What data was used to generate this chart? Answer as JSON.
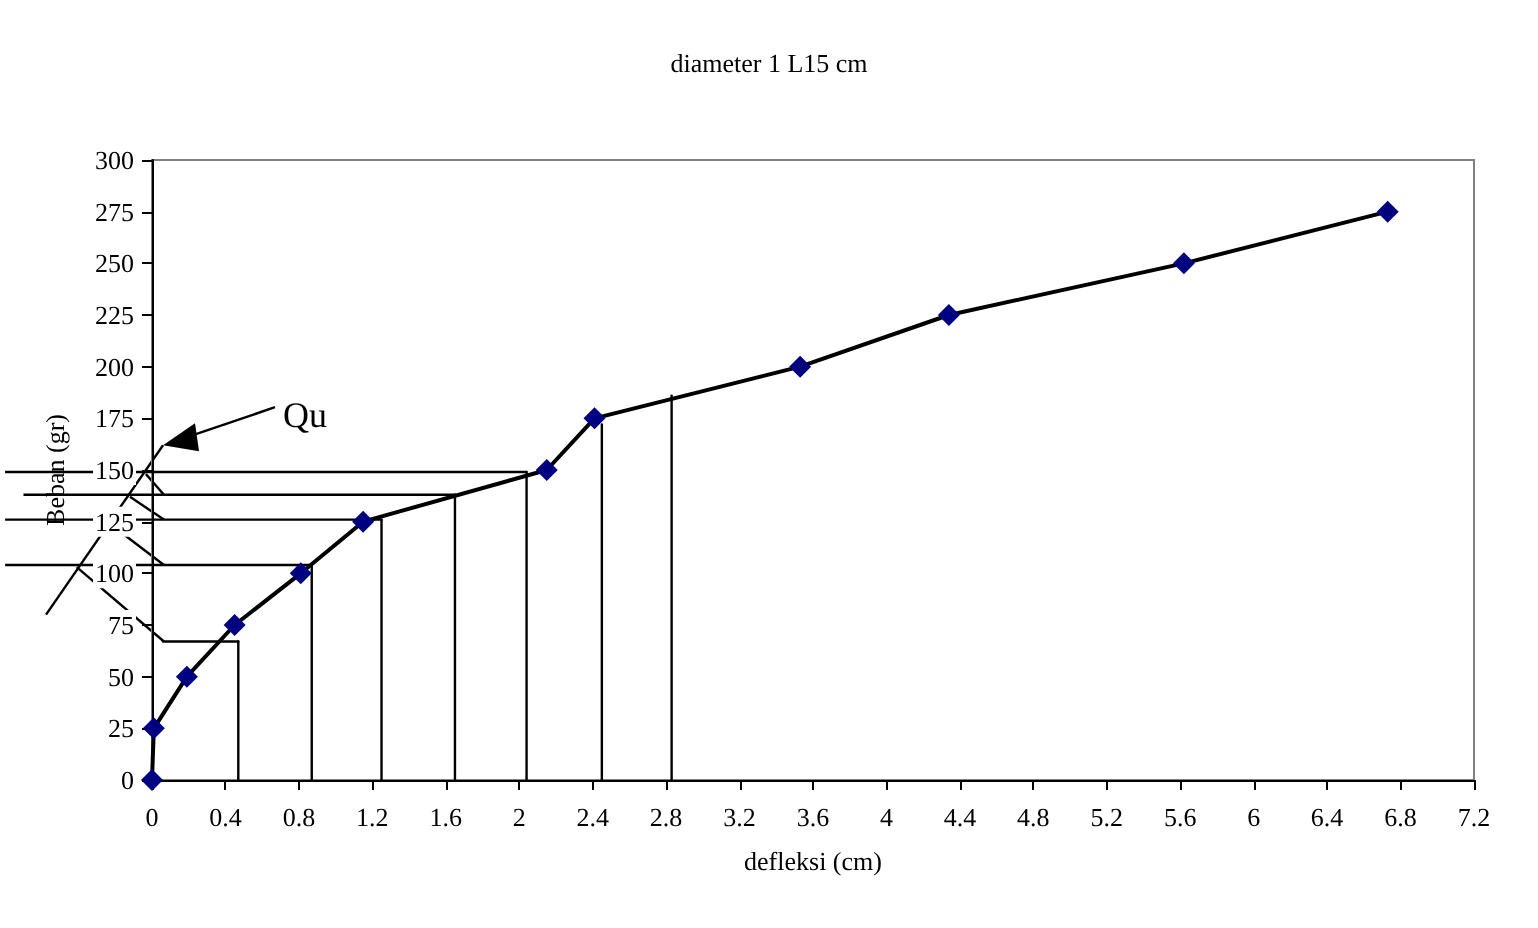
{
  "chart_data": {
    "type": "line",
    "title": "diameter 1 L15 cm",
    "xlabel": "defleksi (cm)",
    "ylabel": "Beban (gr)",
    "xlim": [
      0,
      7.2
    ],
    "xticks": [
      0,
      0.4,
      0.8,
      1.2,
      1.6,
      2,
      2.4,
      2.8,
      3.2,
      3.6,
      4,
      4.4,
      4.8,
      5.2,
      5.6,
      6,
      6.4,
      6.8,
      7.2
    ],
    "ylim": [
      0,
      300
    ],
    "yticks": [
      0,
      25,
      50,
      75,
      100,
      125,
      150,
      175,
      200,
      225,
      250,
      275,
      300
    ],
    "grid": false,
    "annotations": [
      "Qu"
    ],
    "series": [
      {
        "color": "#000080",
        "marker": "diamond",
        "x": [
          0,
          0.01,
          0.19,
          0.45,
          0.81,
          1.15,
          2.15,
          2.41,
          3.53,
          4.34,
          5.62,
          6.73
        ],
        "values": [
          0,
          25,
          50,
          75,
          100,
          125,
          150,
          175,
          200,
          225,
          250,
          275
        ]
      },
      {
        "color": "#000000",
        "marker": "none",
        "x": [
          0.47,
          0.47
        ],
        "values": [
          0,
          67
        ]
      },
      {
        "color": "#000000",
        "marker": "none",
        "x": [
          0.87,
          0.87
        ],
        "values": [
          0,
          104
        ]
      },
      {
        "color": "#000000",
        "marker": "none",
        "x": [
          1.25,
          1.25
        ],
        "values": [
          0,
          126
        ]
      },
      {
        "color": "#000000",
        "marker": "none",
        "x": [
          1.65,
          1.65
        ],
        "values": [
          0,
          138
        ]
      },
      {
        "color": "#000000",
        "marker": "none",
        "x": [
          2.04,
          2.04
        ],
        "values": [
          0,
          149
        ]
      },
      {
        "color": "#000000",
        "marker": "none",
        "x": [
          2.45,
          2.45
        ],
        "values": [
          0,
          172
        ]
      },
      {
        "color": "#000000",
        "marker": "none",
        "x": [
          2.83,
          2.83
        ],
        "values": [
          0,
          186
        ]
      },
      {
        "color": "#000000",
        "marker": "none",
        "x": [
          0.06,
          0.47
        ],
        "values": [
          67,
          67
        ]
      },
      {
        "color": "#000000",
        "marker": "none",
        "x": [
          0,
          0.87
        ],
        "values": [
          104,
          104
        ]
      },
      {
        "color": "#000000",
        "marker": "none",
        "x": [
          0,
          1.25
        ],
        "values": [
          126,
          126
        ]
      },
      {
        "color": "#000000",
        "marker": "none",
        "x": [
          0,
          1.65
        ],
        "values": [
          138,
          138
        ]
      },
      {
        "color": "#000000",
        "marker": "none",
        "x": [
          0,
          2.04
        ],
        "values": [
          149,
          149
        ]
      }
    ]
  }
}
